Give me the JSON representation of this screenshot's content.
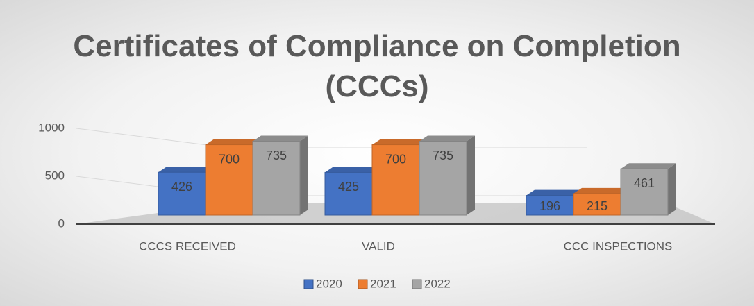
{
  "chart_data": {
    "type": "bar",
    "title": "Certificates of Compliance on Completion (CCCs)",
    "categories": [
      "CCCS RECEIVED",
      "VALID",
      "CCC INSPECTIONS"
    ],
    "series": [
      {
        "name": "2020",
        "color": "#4472c4",
        "values": [
          426,
          425,
          196
        ]
      },
      {
        "name": "2021",
        "color": "#ed7d31",
        "values": [
          700,
          700,
          215
        ]
      },
      {
        "name": "2022",
        "color": "#a5a5a5",
        "values": [
          735,
          735,
          461
        ]
      }
    ],
    "ylim": [
      0,
      1000
    ],
    "yticks": [
      0,
      500,
      1000
    ],
    "legend": "bottom"
  }
}
